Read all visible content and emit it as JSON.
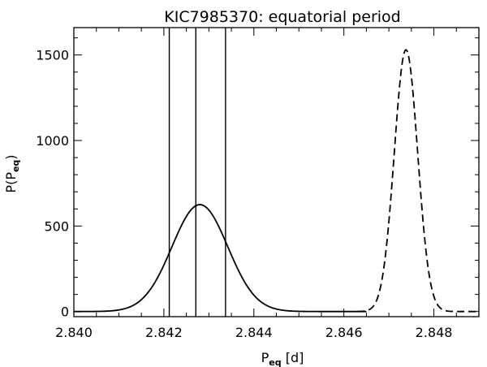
{
  "chart_data": {
    "type": "line",
    "title": "KIC7985370: equatorial period",
    "xlabel": {
      "main": "P",
      "sub": "eq",
      "suffix": " [d]"
    },
    "ylabel": {
      "main": "P(P",
      "sub": "eq",
      "suffix": ")"
    },
    "xlim": [
      2.84,
      2.849
    ],
    "ylim": [
      -30,
      1660
    ],
    "xticks": [
      2.84,
      2.842,
      2.844,
      2.846,
      2.848
    ],
    "xtick_labels": [
      "2.840",
      "2.842",
      "2.844",
      "2.846",
      "2.848"
    ],
    "yticks": [
      0,
      500,
      1000,
      1500
    ],
    "ytick_labels": [
      "0",
      "500",
      "1000",
      "1500"
    ],
    "vertical_lines": [
      2.84212,
      2.84271,
      2.84337
    ],
    "series": [
      {
        "style": "solid",
        "gaussian": {
          "center": 2.8428,
          "sigma": 0.00062,
          "amplitude": 625
        },
        "x_range": [
          2.84,
          2.8465
        ]
      },
      {
        "style": "dashed",
        "gaussian": {
          "center": 2.84738,
          "sigma": 0.00026,
          "amplitude": 1530
        },
        "x_range": [
          2.8463,
          2.849
        ]
      }
    ],
    "grid": false,
    "legend": "none"
  }
}
